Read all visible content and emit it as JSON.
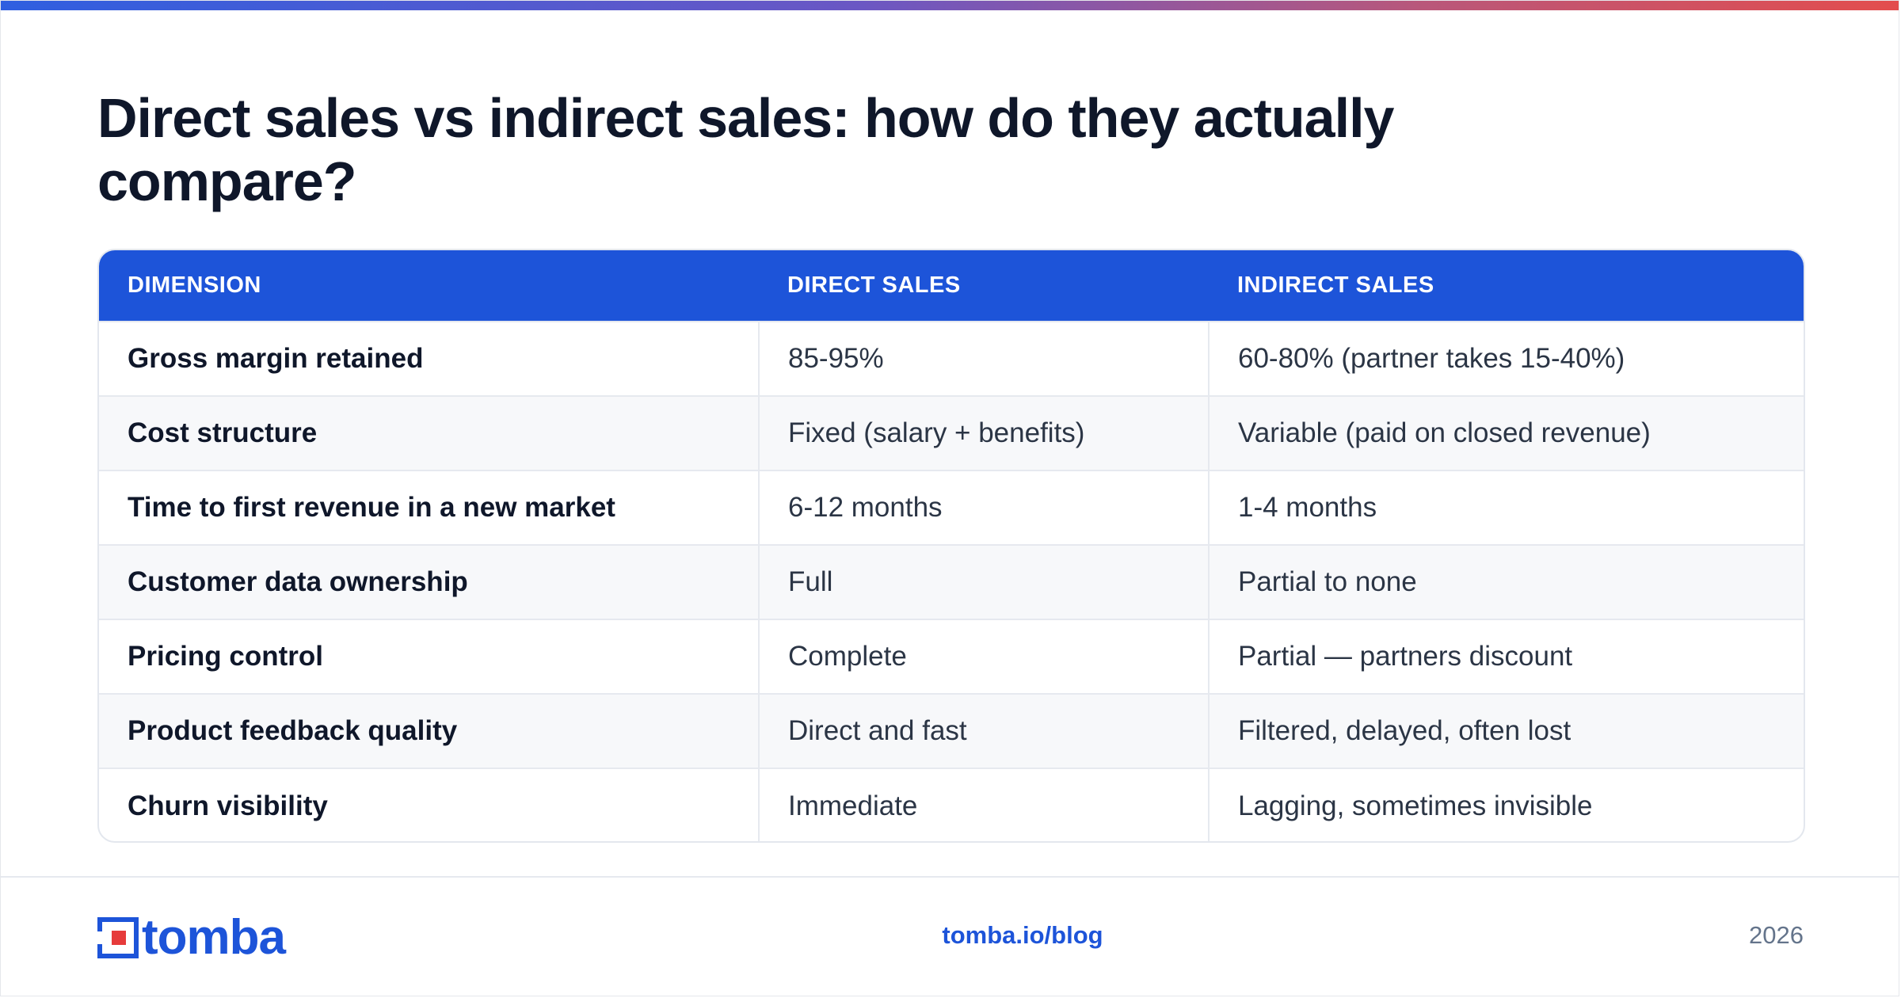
{
  "title": "Direct sales vs indirect sales: how do they actually compare?",
  "table": {
    "headers": [
      "DIMENSION",
      "DIRECT SALES",
      "INDIRECT SALES"
    ],
    "rows": [
      [
        "Gross margin retained",
        "85-95%",
        "60-80% (partner takes 15-40%)"
      ],
      [
        "Cost structure",
        "Fixed (salary + benefits)",
        "Variable (paid on closed revenue)"
      ],
      [
        "Time to first revenue in a new market",
        "6-12 months",
        "1-4 months"
      ],
      [
        "Customer data ownership",
        "Full",
        "Partial to none"
      ],
      [
        "Pricing control",
        "Complete",
        "Partial — partners discount"
      ],
      [
        "Product feedback quality",
        "Direct and fast",
        "Filtered, delayed, often lost"
      ],
      [
        "Churn visibility",
        "Immediate",
        "Lagging, sometimes invisible"
      ]
    ]
  },
  "footer": {
    "logo_text": "tomba",
    "logo_icon": "tomba-logo-icon",
    "link": "tomba.io/blog",
    "year": "2026"
  },
  "colors": {
    "accent": "#1d54d9",
    "logo_red": "#e63b3b",
    "heading": "#0f172a",
    "muted": "#64748b"
  }
}
